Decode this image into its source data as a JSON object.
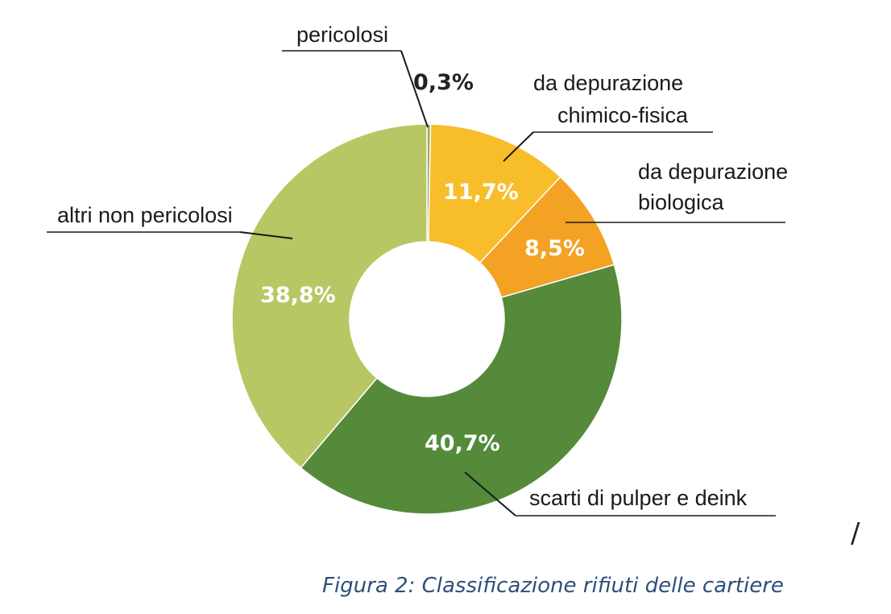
{
  "chart_data": {
    "type": "pie",
    "donut": true,
    "slices": [
      {
        "label": "pericolosi",
        "value": 0.3,
        "value_label": "0,3%",
        "color": "#9aa86a"
      },
      {
        "label": "da depurazione chimico-fisica",
        "value": 11.7,
        "value_label": "11,7%",
        "color": "#f8bd2a"
      },
      {
        "label": "da depurazione biologica",
        "value": 8.5,
        "value_label": "8,5%",
        "color": "#f3a224"
      },
      {
        "label": "scarti di pulper e deink",
        "value": 40.7,
        "value_label": "40,7%",
        "color": "#548a3a"
      },
      {
        "label": "altri non pericolosi",
        "value": 38.8,
        "value_label": "38,8%",
        "color": "#b8c763"
      }
    ],
    "label_lines": {
      "pericolosi": [
        "pericolosi"
      ],
      "chimico": [
        "da depurazione",
        "chimico-fisica"
      ],
      "biologica": [
        "da depurazione",
        "biologica"
      ],
      "pulper": [
        "scarti di pulper e deink"
      ],
      "altri": [
        "altri non pericolosi"
      ]
    }
  },
  "caption": "Figura 2: Classificazione rifiuti delle cartiere",
  "stray_mark": "/"
}
